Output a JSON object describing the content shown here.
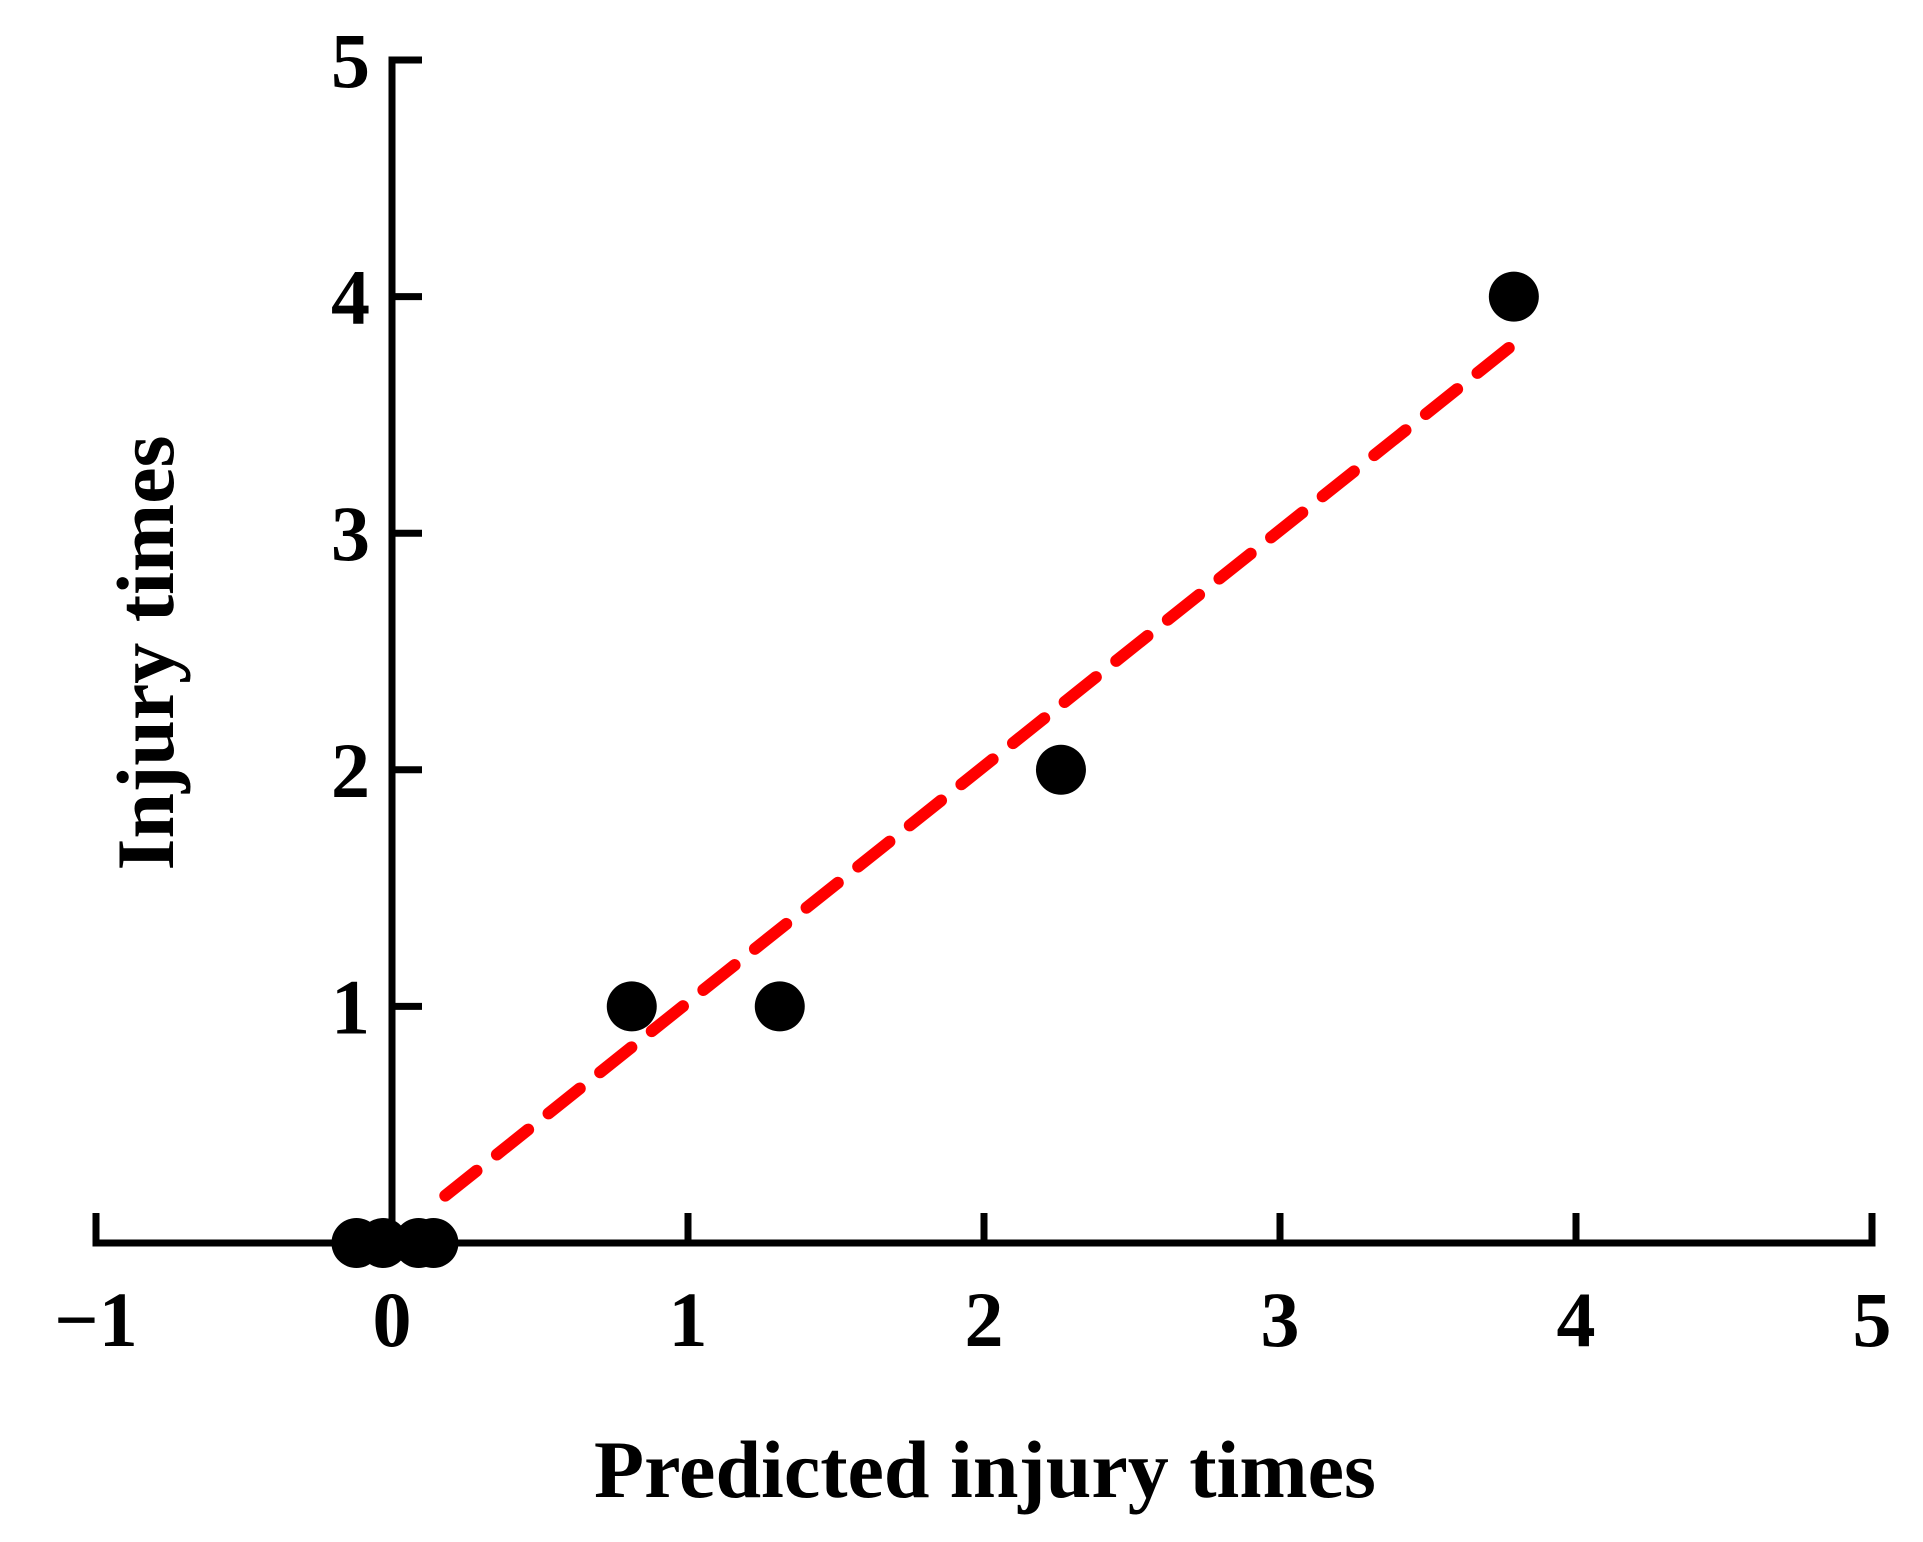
{
  "chart_data": {
    "type": "scatter",
    "title": "",
    "xlabel": "Predicted injury times",
    "ylabel": "Injury times",
    "xlim": [
      -1,
      5
    ],
    "ylim": [
      0,
      5
    ],
    "grid": false,
    "legend": "none",
    "x_ticks": [
      -1,
      0,
      1,
      2,
      3,
      4,
      5
    ],
    "x_tick_labels": [
      "−1",
      "0",
      "1",
      "2",
      "3",
      "4",
      "5"
    ],
    "y_ticks": [
      1,
      2,
      3,
      4,
      5
    ],
    "y_tick_labels": [
      "1",
      "2",
      "3",
      "4",
      "5"
    ],
    "series": [
      {
        "type": "scatter",
        "color": "#000000",
        "points": [
          {
            "x": -0.12,
            "y": 0
          },
          {
            "x": -0.03,
            "y": 0
          },
          {
            "x": 0.09,
            "y": 0
          },
          {
            "x": 0.14,
            "y": 0
          },
          {
            "x": 0.81,
            "y": 1
          },
          {
            "x": 1.31,
            "y": 1
          },
          {
            "x": 2.26,
            "y": 2
          },
          {
            "x": 3.79,
            "y": 4
          }
        ]
      }
    ],
    "fit_line": {
      "style": "dashed",
      "color": "#ff0000",
      "x": [
        0.18,
        3.79
      ],
      "y": [
        0.2,
        3.8
      ]
    }
  }
}
